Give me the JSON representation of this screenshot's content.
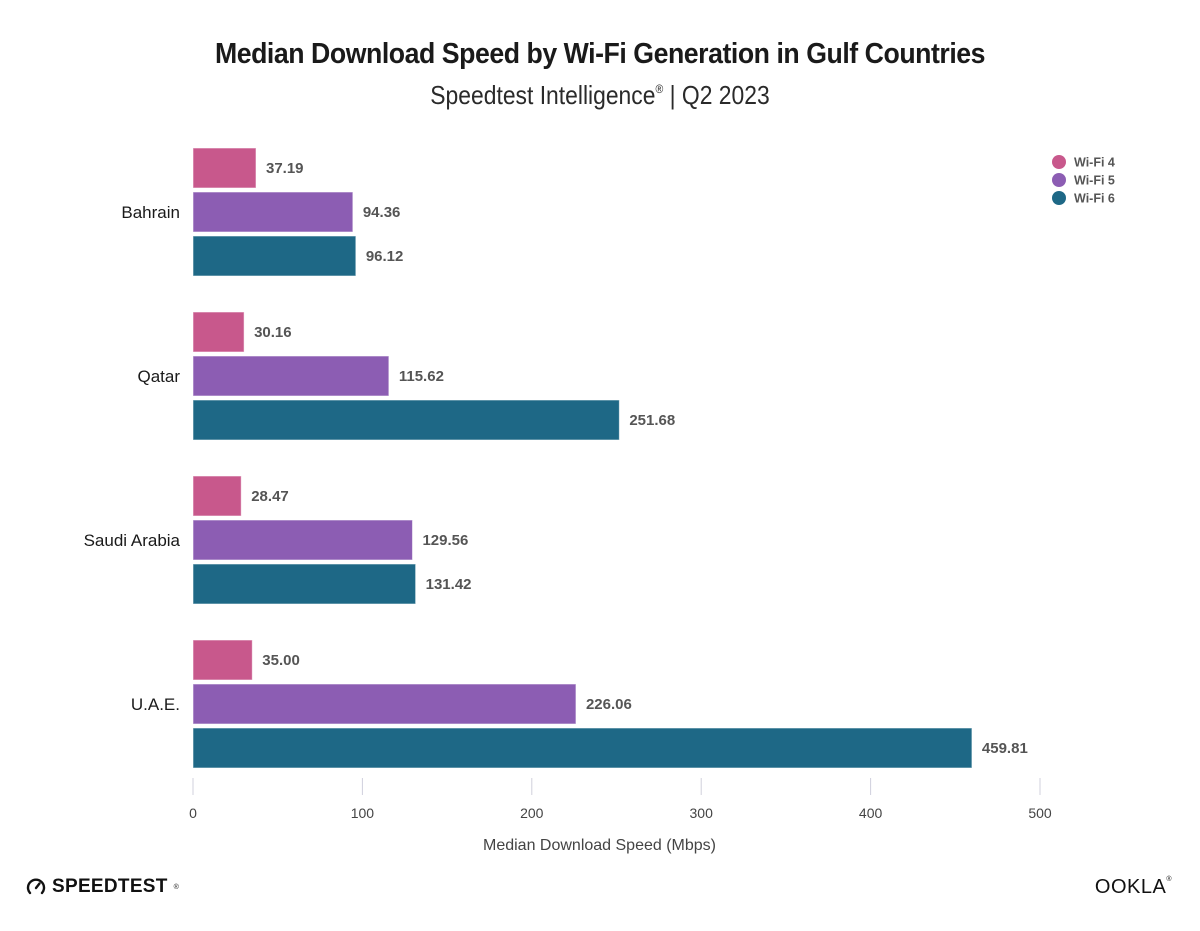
{
  "chart_data": {
    "type": "bar",
    "orientation": "horizontal",
    "title": "Median Download Speed by Wi-Fi Generation in Gulf Countries",
    "subtitle": {
      "source": "Speedtest Intelligence",
      "mark": "®",
      "separator": "|",
      "period": "Q2 2023"
    },
    "categories": [
      "Bahrain",
      "Qatar",
      "Saudi Arabia",
      "U.A.E."
    ],
    "series": [
      {
        "name": "Wi-Fi 4",
        "color": "#c8588c",
        "values": [
          37.19,
          30.16,
          28.47,
          35.0
        ],
        "labels": [
          "37.19",
          "30.16",
          "28.47",
          "35.00"
        ]
      },
      {
        "name": "Wi-Fi 5",
        "color": "#8c5db3",
        "values": [
          94.36,
          115.62,
          129.56,
          226.06
        ],
        "labels": [
          "94.36",
          "115.62",
          "129.56",
          "226.06"
        ]
      },
      {
        "name": "Wi-Fi 6",
        "color": "#1e6886",
        "values": [
          96.12,
          251.68,
          131.42,
          459.81
        ],
        "labels": [
          "96.12",
          "251.68",
          "131.42",
          "459.81"
        ]
      }
    ],
    "xlabel": "Median Download Speed (Mbps)",
    "ylabel": "",
    "xlim": [
      0,
      500
    ],
    "xticks": [
      0,
      100,
      200,
      300,
      400,
      500
    ],
    "grid": false,
    "legend": "top-right"
  },
  "branding": {
    "left_logo": "SPEEDTEST",
    "left_logo_mark": "®",
    "right_logo": "OOKLA",
    "right_logo_mark": "®"
  }
}
